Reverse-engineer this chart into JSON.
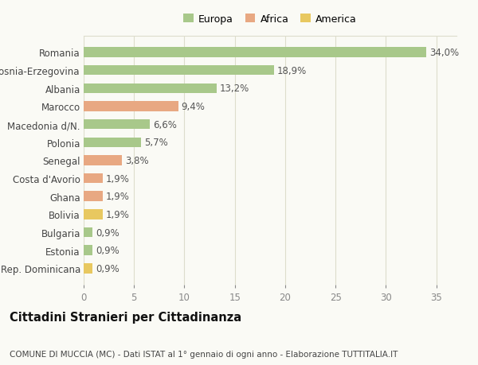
{
  "categories": [
    "Romania",
    "Bosnia-Erzegovina",
    "Albania",
    "Marocco",
    "Macedonia d/N.",
    "Polonia",
    "Senegal",
    "Costa d'Avorio",
    "Ghana",
    "Bolivia",
    "Bulgaria",
    "Estonia",
    "Rep. Dominicana"
  ],
  "values": [
    34.0,
    18.9,
    13.2,
    9.4,
    6.6,
    5.7,
    3.8,
    1.9,
    1.9,
    1.9,
    0.9,
    0.9,
    0.9
  ],
  "labels": [
    "34,0%",
    "18,9%",
    "13,2%",
    "9,4%",
    "6,6%",
    "5,7%",
    "3,8%",
    "1,9%",
    "1,9%",
    "1,9%",
    "0,9%",
    "0,9%",
    "0,9%"
  ],
  "colors": [
    "#a8c88a",
    "#a8c88a",
    "#a8c88a",
    "#e8a882",
    "#a8c88a",
    "#a8c88a",
    "#e8a882",
    "#e8a882",
    "#e8a882",
    "#e8c860",
    "#a8c88a",
    "#a8c88a",
    "#e8c860"
  ],
  "legend_labels": [
    "Europa",
    "Africa",
    "America"
  ],
  "legend_colors": [
    "#a8c88a",
    "#e8a882",
    "#e8c860"
  ],
  "title": "Cittadini Stranieri per Cittadinanza",
  "subtitle": "COMUNE DI MUCCIA (MC) - Dati ISTAT al 1° gennaio di ogni anno - Elaborazione TUTTITALIA.IT",
  "xlim": [
    0,
    37
  ],
  "xticks": [
    0,
    5,
    10,
    15,
    20,
    25,
    30,
    35
  ],
  "background_color": "#fafaf5",
  "grid_color": "#ddddcc",
  "bar_height": 0.55,
  "tick_fontsize": 8.5,
  "label_fontsize": 8.5,
  "title_fontsize": 10.5,
  "subtitle_fontsize": 7.5
}
